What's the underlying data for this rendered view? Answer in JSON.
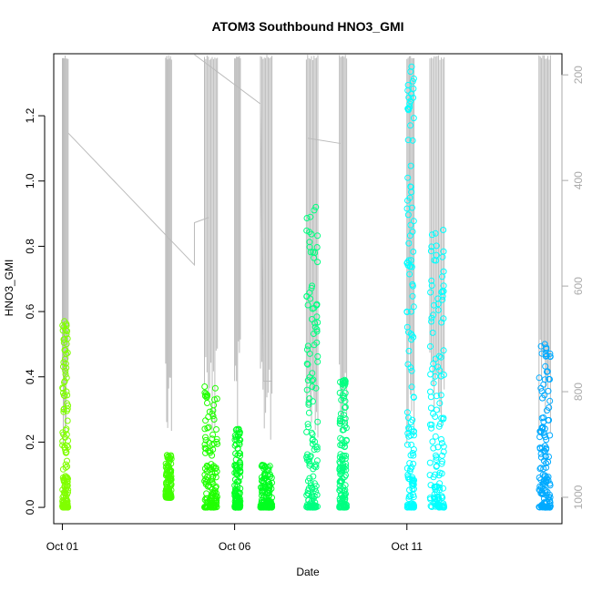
{
  "chart_data": {
    "type": "scatter",
    "title": "ATOM3 Southbound HNO3_GMI",
    "xlabel": "Date",
    "ylabel": "HNO3_GMI",
    "xlim": [
      "2017-09-30T18:00",
      "2017-10-15T12:00"
    ],
    "ylim": [
      -0.05,
      1.39
    ],
    "y_ticks": [
      "0.0",
      "0.2",
      "0.4",
      "0.6",
      "0.8",
      "1.0",
      "1.2"
    ],
    "x_ticks": [
      {
        "label": "Oct 01",
        "date": "2017-10-01"
      },
      {
        "label": "Oct 06",
        "date": "2017-10-06"
      },
      {
        "label": "Oct 11",
        "date": "2017-10-11"
      }
    ],
    "y2_axis": {
      "label": "",
      "range": [
        1050,
        160
      ],
      "reversed": true,
      "ticks": [
        "200",
        "400",
        "600",
        "800",
        "1000"
      ],
      "color": "#aaaaaa"
    },
    "marker": "open-circle",
    "series": [
      {
        "color": "#80ff00",
        "segments": [
          {
            "x": [
              "2017-10-01T00:00",
              "2017-10-01T04:00"
            ],
            "y_min": 0.0,
            "y_max": 0.57
          }
        ]
      },
      {
        "color": "#40ff00",
        "segments": [
          {
            "x": [
              "2017-10-04T00:00",
              "2017-10-04T04:00"
            ],
            "y_min": 0.03,
            "y_max": 0.16
          }
        ]
      },
      {
        "color": "#20ff00",
        "segments": [
          {
            "x": [
              "2017-10-05T03:00",
              "2017-10-05T12:00"
            ],
            "y_min": 0.0,
            "y_max": 0.37
          }
        ]
      },
      {
        "color": "#00ff20",
        "segments": [
          {
            "x": [
              "2017-10-06T00:00",
              "2017-10-06T04:00"
            ],
            "y_min": 0.0,
            "y_max": 0.24
          },
          {
            "x": [
              "2017-10-06T18:00",
              "2017-10-07T02:00"
            ],
            "y_min": 0.0,
            "y_max": 0.13
          }
        ]
      },
      {
        "color": "#00ff80",
        "segments": [
          {
            "x": [
              "2017-10-08T02:00",
              "2017-10-08T10:00"
            ],
            "y_min": 0.0,
            "y_max": 0.92
          },
          {
            "x": [
              "2017-10-09T01:00",
              "2017-10-09T06:00"
            ],
            "y_min": 0.0,
            "y_max": 0.39
          }
        ]
      },
      {
        "color": "#00ffff",
        "segments": [
          {
            "x": [
              "2017-10-11T00:00",
              "2017-10-11T05:00"
            ],
            "y_min": 0.0,
            "y_max": 1.35
          },
          {
            "x": [
              "2017-10-11T16:00",
              "2017-10-12T02:00"
            ],
            "y_min": 0.0,
            "y_max": 0.85
          }
        ]
      },
      {
        "color": "#00aaff",
        "segments": [
          {
            "x": [
              "2017-10-14T20:00",
              "2017-10-15T04:00"
            ],
            "y_min": 0.0,
            "y_max": 0.5
          }
        ]
      }
    ],
    "pressure_trace_color": "#bbbbbb"
  }
}
